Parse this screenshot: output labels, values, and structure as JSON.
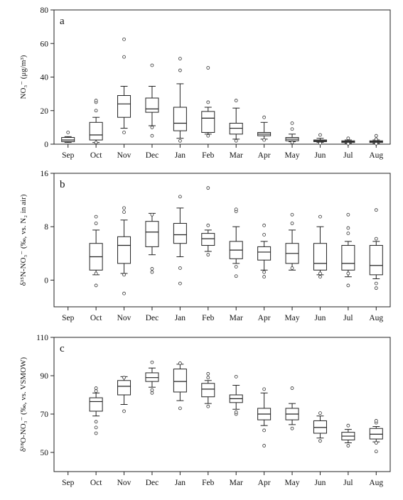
{
  "chart_data": [
    {
      "type": "box",
      "panel_label": "a",
      "ylabel": "NO₃⁻ (μg/m³)",
      "ylim": [
        0,
        80
      ],
      "yticks": [
        0,
        20,
        40,
        60,
        80
      ],
      "categories": [
        "Sep",
        "Oct",
        "Nov",
        "Dec",
        "Jan",
        "Feb",
        "Mar",
        "Apr",
        "May",
        "Jun",
        "Jul",
        "Aug"
      ],
      "boxes": [
        {
          "month": "Sep",
          "whisker_low": 1.0,
          "q1": 1.5,
          "median": 2.5,
          "q3": 4.0,
          "whisker_high": 4.5,
          "outliers": [
            7
          ]
        },
        {
          "month": "Oct",
          "whisker_low": 1.0,
          "q1": 2.5,
          "median": 5.5,
          "q3": 13.0,
          "whisker_high": 16.0,
          "outliers": [
            1,
            20,
            25,
            26
          ]
        },
        {
          "month": "Nov",
          "whisker_low": 9.5,
          "q1": 16.0,
          "median": 24.0,
          "q3": 29.0,
          "whisker_high": 34.5,
          "outliers": [
            7,
            52,
            62.5
          ]
        },
        {
          "month": "Dec",
          "whisker_low": 11.0,
          "q1": 19.0,
          "median": 21.0,
          "q3": 27.5,
          "whisker_high": 34.5,
          "outliers": [
            5,
            10,
            47
          ]
        },
        {
          "month": "Jan",
          "whisker_low": 3.5,
          "q1": 8.0,
          "median": 12.5,
          "q3": 22.0,
          "whisker_high": 36.0,
          "outliers": [
            2,
            44,
            51
          ]
        },
        {
          "month": "Feb",
          "whisker_low": 6.0,
          "q1": 7.0,
          "median": 15.5,
          "q3": 19.5,
          "whisker_high": 22.0,
          "outliers": [
            5,
            25,
            45.5
          ]
        },
        {
          "month": "Mar",
          "whisker_low": 3.0,
          "q1": 6.0,
          "median": 9.5,
          "q3": 12.5,
          "whisker_high": 21.5,
          "outliers": [
            2,
            26
          ]
        },
        {
          "month": "Apr",
          "whisker_low": 3.0,
          "q1": 5.0,
          "median": 6.0,
          "q3": 7.0,
          "whisker_high": 13.0,
          "outliers": [
            2.5,
            16
          ]
        },
        {
          "month": "May",
          "whisker_low": 1.5,
          "q1": 2.0,
          "median": 3.0,
          "q3": 4.0,
          "whisker_high": 6.0,
          "outliers": [
            1,
            9,
            12.5
          ]
        },
        {
          "month": "Jun",
          "whisker_low": 1.0,
          "q1": 1.5,
          "median": 2.0,
          "q3": 2.5,
          "whisker_high": 3.5,
          "outliers": [
            0.5,
            5.5
          ]
        },
        {
          "month": "Jul",
          "whisker_low": 0.5,
          "q1": 1.0,
          "median": 1.5,
          "q3": 2.0,
          "whisker_high": 2.5,
          "outliers": [
            0.3,
            3.5
          ]
        },
        {
          "month": "Aug",
          "whisker_low": 0.5,
          "q1": 1.0,
          "median": 1.5,
          "q3": 2.0,
          "whisker_high": 2.5,
          "outliers": [
            0.3,
            3,
            5
          ]
        }
      ]
    },
    {
      "type": "box",
      "panel_label": "b",
      "ylabel": "δ¹⁵N-NO₃⁻ (‰, vs. N₂ in air)",
      "ylim": [
        -4,
        16
      ],
      "yticks": [
        0,
        8,
        16
      ],
      "categories": [
        "Sep",
        "Oct",
        "Nov",
        "Dec",
        "Jan",
        "Feb",
        "Mar",
        "Apr",
        "May",
        "Jun",
        "Jul",
        "Aug"
      ],
      "boxes": [
        {
          "month": "Oct",
          "whisker_low": 0.8,
          "q1": 1.5,
          "median": 3.5,
          "q3": 5.5,
          "whisker_high": 7.5,
          "outliers": [
            -0.8,
            1.0,
            8.5,
            9.5
          ]
        },
        {
          "month": "Nov",
          "whisker_low": 1.0,
          "q1": 2.5,
          "median": 5.2,
          "q3": 6.5,
          "whisker_high": 9.0,
          "outliers": [
            -2.0,
            0.8,
            10.2,
            10.8
          ]
        },
        {
          "month": "Dec",
          "whisker_low": 3.8,
          "q1": 5.0,
          "median": 7.2,
          "q3": 8.8,
          "whisker_high": 10.0,
          "outliers": [
            1.2,
            1.7,
            9.8
          ]
        },
        {
          "month": "Jan",
          "whisker_low": 3.5,
          "q1": 5.5,
          "median": 6.8,
          "q3": 8.5,
          "whisker_high": 10.8,
          "outliers": [
            -0.5,
            1.8,
            12.5
          ]
        },
        {
          "month": "Feb",
          "whisker_low": 4.3,
          "q1": 5.2,
          "median": 6.2,
          "q3": 7.0,
          "whisker_high": 7.5,
          "outliers": [
            3.8,
            8.2,
            13.8
          ]
        },
        {
          "month": "Mar",
          "whisker_low": 2.5,
          "q1": 3.2,
          "median": 4.5,
          "q3": 5.8,
          "whisker_high": 8.0,
          "outliers": [
            0.6,
            2.0,
            10.3,
            10.6
          ]
        },
        {
          "month": "Apr",
          "whisker_low": 1.5,
          "q1": 3.0,
          "median": 4.2,
          "q3": 5.0,
          "whisker_high": 5.8,
          "outliers": [
            0.5,
            1.2,
            6.8,
            8.2
          ]
        },
        {
          "month": "May",
          "whisker_low": 1.5,
          "q1": 2.5,
          "median": 4.0,
          "q3": 5.5,
          "whisker_high": 7.5,
          "outliers": [
            1.8,
            8.5,
            9.8
          ]
        },
        {
          "month": "Jun",
          "whisker_low": 0.8,
          "q1": 1.5,
          "median": 2.5,
          "q3": 5.5,
          "whisker_high": 8.0,
          "outliers": [
            0.5,
            1.0,
            9.5
          ]
        },
        {
          "month": "Jul",
          "whisker_low": 0.5,
          "q1": 1.5,
          "median": 2.5,
          "q3": 5.2,
          "whisker_high": 5.8,
          "outliers": [
            -0.8,
            1.0,
            7.0,
            7.8,
            9.8
          ]
        },
        {
          "month": "Aug",
          "whisker_low": 0.2,
          "q1": 0.8,
          "median": 2.2,
          "q3": 5.2,
          "whisker_high": 5.8,
          "outliers": [
            -1.2,
            -0.5,
            6.2,
            10.5
          ]
        }
      ]
    },
    {
      "type": "box",
      "panel_label": "c",
      "ylabel": "δ¹⁸O-NO₃⁻ (‰, vs. VSMOW)",
      "ylim": [
        40,
        110
      ],
      "yticks": [
        50,
        70,
        90,
        110
      ],
      "categories": [
        "Sep",
        "Oct",
        "Nov",
        "Dec",
        "Jan",
        "Feb",
        "Mar",
        "Apr",
        "May",
        "Jun",
        "Jul",
        "Aug"
      ],
      "boxes": [
        {
          "month": "Oct",
          "whisker_low": 69.0,
          "q1": 71.5,
          "median": 76.5,
          "q3": 78.5,
          "whisker_high": 81.0,
          "outliers": [
            60,
            63,
            66,
            82,
            83.5
          ]
        },
        {
          "month": "Nov",
          "whisker_low": 75.0,
          "q1": 80.0,
          "median": 84.5,
          "q3": 87.5,
          "whisker_high": 89.5,
          "outliers": [
            71.5,
            89
          ]
        },
        {
          "month": "Dec",
          "whisker_low": 84.0,
          "q1": 87.0,
          "median": 89.0,
          "q3": 91.5,
          "whisker_high": 94.0,
          "outliers": [
            81,
            82.5,
            97
          ]
        },
        {
          "month": "Jan",
          "whisker_low": 77.0,
          "q1": 81.5,
          "median": 87.0,
          "q3": 93.5,
          "whisker_high": 96.0,
          "outliers": [
            73,
            96.5
          ]
        },
        {
          "month": "Feb",
          "whisker_low": 75.5,
          "q1": 79.0,
          "median": 83.0,
          "q3": 86.0,
          "whisker_high": 87.5,
          "outliers": [
            74,
            89,
            91
          ]
        },
        {
          "month": "Mar",
          "whisker_low": 72.5,
          "q1": 76.0,
          "median": 78.0,
          "q3": 80.0,
          "whisker_high": 85.0,
          "outliers": [
            70,
            71,
            89.5
          ]
        },
        {
          "month": "Apr",
          "whisker_low": 64.0,
          "q1": 67.0,
          "median": 70.0,
          "q3": 73.0,
          "whisker_high": 81.0,
          "outliers": [
            53.5,
            61.5,
            83
          ]
        },
        {
          "month": "May",
          "whisker_low": 64.5,
          "q1": 67.0,
          "median": 70.0,
          "q3": 73.0,
          "whisker_high": 75.5,
          "outliers": [
            62.5,
            83.5
          ]
        },
        {
          "month": "Jun",
          "whisker_low": 57.5,
          "q1": 60.0,
          "median": 63.0,
          "q3": 66.5,
          "whisker_high": 69.0,
          "outliers": [
            56,
            70.5
          ]
        },
        {
          "month": "Jul",
          "whisker_low": 55.0,
          "q1": 56.5,
          "median": 58.5,
          "q3": 60.5,
          "whisker_high": 62.0,
          "outliers": [
            53.5,
            64
          ]
        },
        {
          "month": "Aug",
          "whisker_low": 55.5,
          "q1": 57.0,
          "median": 59.5,
          "q3": 62.5,
          "whisker_high": 63.5,
          "outliers": [
            50.5,
            55,
            65.5,
            66.5
          ]
        }
      ]
    }
  ]
}
